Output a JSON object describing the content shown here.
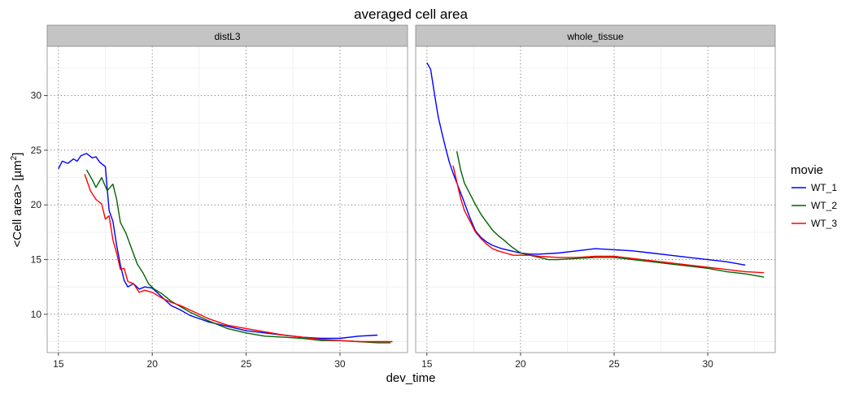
{
  "chart_data": {
    "type": "line",
    "title": "averaged cell area",
    "xlabel": "dev_time",
    "ylabel_main": "<Cell area> [µm",
    "ylabel_sup": "2",
    "ylabel_end": "]",
    "xlim": [
      14.4,
      33.6
    ],
    "ylim": [
      6.5,
      34.5
    ],
    "x_ticks": [
      15,
      20,
      25,
      30
    ],
    "x_tick_labels": [
      "15",
      "20",
      "25",
      "30"
    ],
    "y_ticks": [
      10,
      15,
      20,
      25,
      30
    ],
    "y_tick_labels": [
      "10",
      "15",
      "20",
      "25",
      "30"
    ],
    "grid": true,
    "legend": {
      "title": "movie",
      "position": "right",
      "items": [
        {
          "name": "WT_1",
          "color": "#0000ff"
        },
        {
          "name": "WT_2",
          "color": "#006400"
        },
        {
          "name": "WT_3",
          "color": "#ff0000"
        }
      ]
    },
    "panels": [
      {
        "strip": "distL3",
        "series": [
          {
            "name": "WT_1",
            "color": "#0000ff",
            "x": [
              15.0,
              15.2,
              15.5,
              15.8,
              16.0,
              16.2,
              16.5,
              16.8,
              17.0,
              17.2,
              17.5,
              17.7,
              17.9,
              18.1,
              18.3,
              18.5,
              18.7,
              19.0,
              19.3,
              19.6,
              20.0,
              20.5,
              21.0,
              21.5,
              22.0,
              23.0,
              24.0,
              25.0,
              26.0,
              27.0,
              28.0,
              29.0,
              30.0,
              31.0,
              32.0
            ],
            "y": [
              23.3,
              24.0,
              23.8,
              24.2,
              24.0,
              24.5,
              24.7,
              24.3,
              24.4,
              23.9,
              23.5,
              19.5,
              18.5,
              16.3,
              14.5,
              13.1,
              12.5,
              12.8,
              12.3,
              12.5,
              12.4,
              11.6,
              10.8,
              10.4,
              9.9,
              9.3,
              8.9,
              8.5,
              8.3,
              8.1,
              7.9,
              7.8,
              7.8,
              8.0,
              8.1
            ]
          },
          {
            "name": "WT_2",
            "color": "#006400",
            "x": [
              16.5,
              16.8,
              17.0,
              17.3,
              17.6,
              17.9,
              18.1,
              18.3,
              18.6,
              18.9,
              19.2,
              19.5,
              19.8,
              20.1,
              20.5,
              21.0,
              21.5,
              22.0,
              23.0,
              24.0,
              25.0,
              26.0,
              27.0,
              28.0,
              29.0,
              30.0,
              31.0,
              32.0,
              32.7
            ],
            "y": [
              23.2,
              22.3,
              21.6,
              22.5,
              21.3,
              21.9,
              20.5,
              18.4,
              17.4,
              16.0,
              14.6,
              13.8,
              12.8,
              12.3,
              11.9,
              11.2,
              10.7,
              10.2,
              9.4,
              8.7,
              8.3,
              8.0,
              7.9,
              7.8,
              7.6,
              7.6,
              7.5,
              7.4,
              7.4
            ]
          },
          {
            "name": "WT_3",
            "color": "#ff0000",
            "x": [
              16.4,
              16.7,
              17.0,
              17.3,
              17.5,
              17.7,
              17.9,
              18.1,
              18.3,
              18.5,
              18.7,
              19.0,
              19.3,
              19.6,
              20.0,
              20.5,
              21.0,
              21.5,
              22.0,
              23.0,
              24.0,
              25.0,
              26.0,
              27.0,
              28.0,
              29.0,
              30.0,
              31.0,
              32.0,
              32.8
            ],
            "y": [
              22.8,
              21.3,
              20.5,
              20.1,
              18.7,
              19.0,
              16.8,
              15.6,
              14.1,
              14.2,
              13.0,
              12.8,
              12.0,
              12.2,
              12.0,
              11.5,
              11.1,
              10.8,
              10.4,
              9.6,
              9.0,
              8.7,
              8.4,
              8.1,
              7.9,
              7.7,
              7.6,
              7.5,
              7.5,
              7.5
            ]
          }
        ]
      },
      {
        "strip": "whole_tissue",
        "series": [
          {
            "name": "WT_1",
            "color": "#0000ff",
            "x": [
              15.0,
              15.2,
              15.4,
              15.6,
              15.8,
              16.0,
              16.2,
              16.4,
              16.6,
              16.8,
              17.0,
              17.3,
              17.6,
              17.9,
              18.2,
              18.5,
              19.0,
              19.5,
              20.0,
              20.5,
              21.0,
              22.0,
              23.0,
              24.0,
              25.0,
              26.0,
              27.0,
              28.0,
              29.0,
              30.0,
              31.0,
              32.0
            ],
            "y": [
              33.0,
              32.4,
              30.2,
              28.1,
              26.6,
              25.2,
              23.9,
              22.9,
              22.0,
              21.1,
              20.2,
              18.8,
              17.6,
              17.0,
              16.6,
              16.3,
              16.0,
              15.8,
              15.6,
              15.5,
              15.5,
              15.6,
              15.8,
              16.0,
              15.9,
              15.8,
              15.6,
              15.4,
              15.2,
              15.0,
              14.8,
              14.5
            ]
          },
          {
            "name": "WT_2",
            "color": "#006400",
            "x": [
              16.6,
              16.8,
              17.0,
              17.3,
              17.6,
              17.9,
              18.2,
              18.5,
              18.8,
              19.1,
              19.5,
              20.0,
              20.5,
              21.0,
              21.5,
              22.0,
              23.0,
              24.0,
              25.0,
              26.0,
              27.0,
              28.0,
              29.0,
              30.0,
              31.0,
              32.0,
              33.0
            ],
            "y": [
              24.9,
              23.2,
              22.0,
              21.0,
              20.0,
              19.1,
              18.4,
              17.7,
              17.2,
              16.8,
              16.2,
              15.6,
              15.4,
              15.2,
              15.0,
              15.0,
              15.1,
              15.2,
              15.2,
              15.0,
              14.8,
              14.6,
              14.4,
              14.2,
              13.9,
              13.7,
              13.4
            ]
          },
          {
            "name": "WT_3",
            "color": "#ff0000",
            "x": [
              16.4,
              16.6,
              16.8,
              17.0,
              17.3,
              17.6,
              17.9,
              18.2,
              18.5,
              18.8,
              19.2,
              19.6,
              20.0,
              20.5,
              21.0,
              22.0,
              23.0,
              24.0,
              25.0,
              26.0,
              27.0,
              28.0,
              29.0,
              30.0,
              31.0,
              32.0,
              33.0
            ],
            "y": [
              23.6,
              22.1,
              20.6,
              19.5,
              18.5,
              17.5,
              16.9,
              16.4,
              16.0,
              15.8,
              15.6,
              15.4,
              15.4,
              15.4,
              15.3,
              15.2,
              15.2,
              15.3,
              15.3,
              15.1,
              14.9,
              14.7,
              14.5,
              14.3,
              14.1,
              13.9,
              13.8
            ]
          }
        ]
      }
    ]
  }
}
